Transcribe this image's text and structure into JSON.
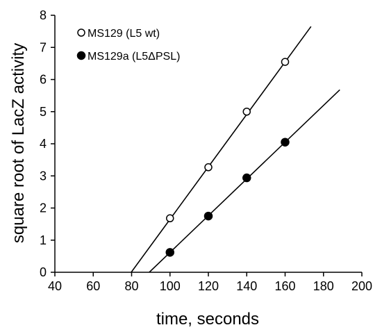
{
  "chart_data": {
    "type": "scatter",
    "xlabel": "time, seconds",
    "ylabel": "square root of LacZ activity",
    "xlim": [
      40,
      200
    ],
    "ylim": [
      0,
      8
    ],
    "xticks": [
      "40",
      "60",
      "80",
      "100",
      "120",
      "140",
      "160",
      "180",
      "200"
    ],
    "yticks": [
      "0",
      "1",
      "2",
      "3",
      "4",
      "5",
      "6",
      "7",
      "8"
    ],
    "grid": false,
    "legend_position": "top-left",
    "series": [
      {
        "name": "MS129 (L5 wt)",
        "marker": "open-circle",
        "x": [
          100,
          120,
          140,
          160
        ],
        "y": [
          1.68,
          3.27,
          5.0,
          6.55
        ],
        "fit_line": {
          "x": [
            79.8,
            173.5
          ],
          "y": [
            0,
            7.65
          ]
        }
      },
      {
        "name": "MS129a (L5ΔPSL)",
        "marker": "filled-circle",
        "x": [
          100,
          120,
          140,
          160
        ],
        "y": [
          0.62,
          1.75,
          2.94,
          4.05
        ],
        "fit_line": {
          "x": [
            89.2,
            188.5
          ],
          "y": [
            0,
            5.68
          ]
        }
      }
    ],
    "colors": {
      "ink": "#000000",
      "background": "#ffffff"
    }
  }
}
